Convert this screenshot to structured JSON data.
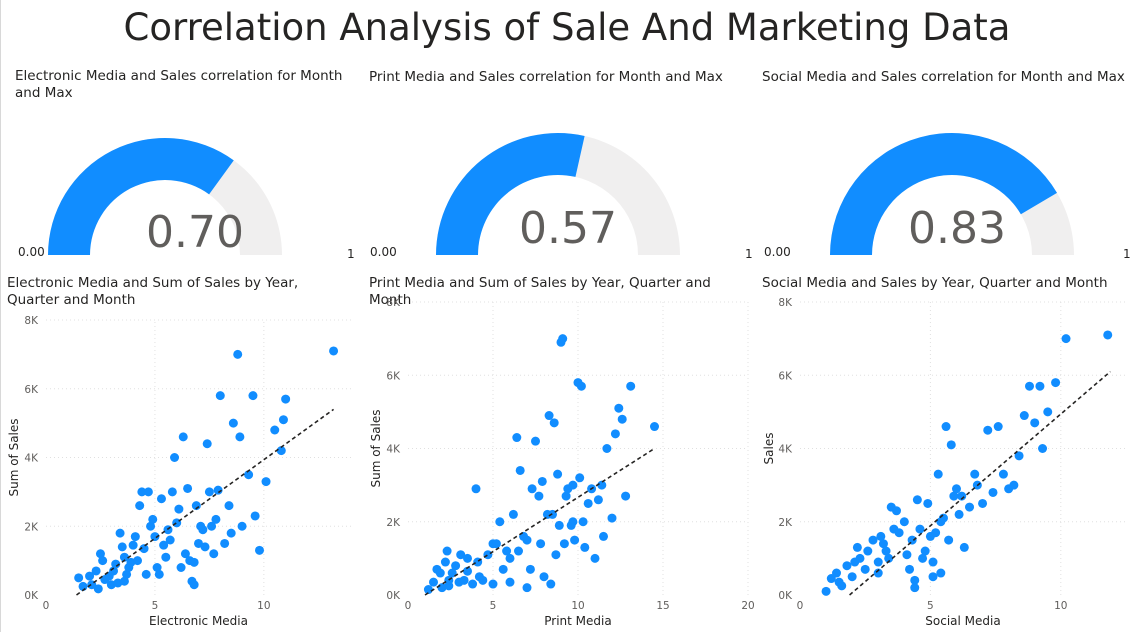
{
  "page": {
    "title": "Correlation Analysis of Sale And Marketing Data"
  },
  "colors": {
    "accent": "#118DFF",
    "gauge_track": "#F0EFEF",
    "trend": "#252423",
    "grid": "#E0E0E0",
    "text": "#252423",
    "muted": "#605E5C"
  },
  "gauges": [
    {
      "title": "Electronic Media and Sales correlation for Month and Max",
      "value": 0.7,
      "value_label": "0.70",
      "min_label": "0.00",
      "max_label": "1",
      "min": 0,
      "max": 1
    },
    {
      "title": "Print Media and Sales correlation for Month and Max",
      "value": 0.57,
      "value_label": "0.57",
      "min_label": "0.00",
      "max_label": "1",
      "min": 0,
      "max": 1
    },
    {
      "title": "Social Media and Sales correlation for Month and Max",
      "value": 0.83,
      "value_label": "0.83",
      "min_label": "0.00",
      "max_label": "1",
      "min": 0,
      "max": 1
    }
  ],
  "chart_data": [
    {
      "type": "scatter",
      "title": "Electronic Media and Sum of Sales by Year, Quarter and Month",
      "xlabel": "Electronic Media",
      "ylabel": "Sum of Sales",
      "xlim": [
        0,
        14
      ],
      "ylim": [
        0,
        8000
      ],
      "xticks": [
        0,
        5,
        10
      ],
      "xtick_labels": [
        "0",
        "5",
        "10"
      ],
      "yticks": [
        0,
        2000,
        4000,
        6000,
        8000
      ],
      "ytick_labels": [
        "0K",
        "2K",
        "4K",
        "6K",
        "8K"
      ],
      "trend": [
        [
          1.4,
          0
        ],
        [
          13.2,
          5400
        ]
      ],
      "points": [
        [
          1.5,
          500
        ],
        [
          1.7,
          250
        ],
        [
          2.0,
          550
        ],
        [
          2.1,
          300
        ],
        [
          2.3,
          700
        ],
        [
          2.4,
          180
        ],
        [
          2.5,
          1200
        ],
        [
          2.6,
          1000
        ],
        [
          2.7,
          450
        ],
        [
          2.9,
          550
        ],
        [
          3.0,
          300
        ],
        [
          3.1,
          700
        ],
        [
          3.2,
          900
        ],
        [
          3.3,
          350
        ],
        [
          3.4,
          1800
        ],
        [
          3.5,
          1400
        ],
        [
          3.6,
          1100
        ],
        [
          3.7,
          600
        ],
        [
          3.8,
          800
        ],
        [
          3.9,
          950
        ],
        [
          4.0,
          1450
        ],
        [
          4.1,
          1700
        ],
        [
          4.2,
          1000
        ],
        [
          4.3,
          2600
        ],
        [
          4.4,
          3000
        ],
        [
          4.5,
          1350
        ],
        [
          4.6,
          600
        ],
        [
          4.7,
          3000
        ],
        [
          4.8,
          2000
        ],
        [
          4.9,
          2200
        ],
        [
          5.0,
          1700
        ],
        [
          5.1,
          800
        ],
        [
          5.2,
          600
        ],
        [
          5.3,
          2800
        ],
        [
          5.4,
          1450
        ],
        [
          5.5,
          1100
        ],
        [
          5.6,
          1900
        ],
        [
          5.7,
          1600
        ],
        [
          5.8,
          3000
        ],
        [
          5.9,
          4000
        ],
        [
          6.0,
          2100
        ],
        [
          6.1,
          2500
        ],
        [
          6.2,
          800
        ],
        [
          6.3,
          4600
        ],
        [
          6.4,
          1200
        ],
        [
          6.5,
          3100
        ],
        [
          6.6,
          1000
        ],
        [
          6.7,
          400
        ],
        [
          6.8,
          300
        ],
        [
          6.9,
          2600
        ],
        [
          7.0,
          1500
        ],
        [
          7.1,
          2000
        ],
        [
          7.2,
          1900
        ],
        [
          7.3,
          1400
        ],
        [
          7.4,
          4400
        ],
        [
          7.5,
          3000
        ],
        [
          7.6,
          2000
        ],
        [
          7.7,
          1200
        ],
        [
          7.8,
          2200
        ],
        [
          7.9,
          3050
        ],
        [
          8.0,
          5800
        ],
        [
          8.2,
          1500
        ],
        [
          8.4,
          2600
        ],
        [
          8.5,
          1800
        ],
        [
          8.6,
          5000
        ],
        [
          8.8,
          7000
        ],
        [
          8.9,
          4600
        ],
        [
          9.0,
          2000
        ],
        [
          9.3,
          3500
        ],
        [
          9.5,
          5800
        ],
        [
          9.6,
          2300
        ],
        [
          9.8,
          1300
        ],
        [
          10.1,
          3300
        ],
        [
          10.5,
          4800
        ],
        [
          10.8,
          4200
        ],
        [
          10.9,
          5100
        ],
        [
          11.0,
          5700
        ],
        [
          13.2,
          7100
        ],
        [
          3.6,
          400
        ],
        [
          6.8,
          950
        ]
      ]
    },
    {
      "type": "scatter",
      "title": "Print Media and Sum of Sales by Year, Quarter and Month",
      "xlabel": "Print Media",
      "ylabel": "Sum of Sales",
      "xlim": [
        0,
        20
      ],
      "ylim": [
        0,
        8000
      ],
      "xticks": [
        0,
        5,
        10,
        15,
        20
      ],
      "xtick_labels": [
        "0",
        "5",
        "10",
        "15",
        "20"
      ],
      "yticks": [
        0,
        2000,
        4000,
        6000,
        8000
      ],
      "ytick_labels": [
        "0K",
        "2K",
        "4K",
        "6K",
        "8K"
      ],
      "trend": [
        [
          1.0,
          0
        ],
        [
          14.5,
          4000
        ]
      ],
      "points": [
        [
          1.2,
          150
        ],
        [
          1.5,
          350
        ],
        [
          1.7,
          700
        ],
        [
          1.9,
          600
        ],
        [
          2.0,
          200
        ],
        [
          2.2,
          900
        ],
        [
          2.3,
          1200
        ],
        [
          2.4,
          250
        ],
        [
          2.6,
          600
        ],
        [
          2.8,
          800
        ],
        [
          3.0,
          350
        ],
        [
          3.1,
          1100
        ],
        [
          3.3,
          400
        ],
        [
          3.5,
          650
        ],
        [
          3.8,
          300
        ],
        [
          4.0,
          2900
        ],
        [
          4.1,
          900
        ],
        [
          4.2,
          500
        ],
        [
          4.4,
          400
        ],
        [
          4.7,
          1100
        ],
        [
          5.0,
          1400
        ],
        [
          5.2,
          1400
        ],
        [
          5.4,
          2000
        ],
        [
          5.6,
          700
        ],
        [
          5.8,
          1200
        ],
        [
          6.0,
          350
        ],
        [
          6.2,
          2200
        ],
        [
          6.4,
          4300
        ],
        [
          6.5,
          1200
        ],
        [
          6.6,
          3400
        ],
        [
          6.8,
          1600
        ],
        [
          7.0,
          1500
        ],
        [
          7.2,
          700
        ],
        [
          7.3,
          2900
        ],
        [
          7.5,
          4200
        ],
        [
          7.7,
          2700
        ],
        [
          7.8,
          1400
        ],
        [
          7.9,
          3100
        ],
        [
          8.0,
          500
        ],
        [
          8.2,
          2200
        ],
        [
          8.3,
          4900
        ],
        [
          8.4,
          300
        ],
        [
          8.5,
          2200
        ],
        [
          8.6,
          4700
        ],
        [
          8.7,
          1100
        ],
        [
          8.8,
          3300
        ],
        [
          8.9,
          1900
        ],
        [
          9.0,
          6900
        ],
        [
          9.1,
          7000
        ],
        [
          9.2,
          1400
        ],
        [
          9.3,
          2700
        ],
        [
          9.4,
          2900
        ],
        [
          9.6,
          1900
        ],
        [
          9.7,
          3000
        ],
        [
          9.8,
          1500
        ],
        [
          10.0,
          5800
        ],
        [
          10.1,
          3200
        ],
        [
          10.2,
          5700
        ],
        [
          10.3,
          2000
        ],
        [
          10.4,
          1300
        ],
        [
          10.6,
          2500
        ],
        [
          10.8,
          2900
        ],
        [
          11.0,
          1000
        ],
        [
          11.2,
          2600
        ],
        [
          11.4,
          3000
        ],
        [
          11.5,
          1600
        ],
        [
          11.7,
          4000
        ],
        [
          12.0,
          2100
        ],
        [
          12.2,
          4400
        ],
        [
          12.4,
          5100
        ],
        [
          12.6,
          4800
        ],
        [
          12.8,
          2700
        ],
        [
          13.1,
          5700
        ],
        [
          14.5,
          4600
        ],
        [
          7.0,
          200
        ],
        [
          5.0,
          300
        ],
        [
          3.5,
          1000
        ],
        [
          2.4,
          400
        ],
        [
          6.0,
          1000
        ],
        [
          9.7,
          2000
        ]
      ]
    },
    {
      "type": "scatter",
      "title": "Social Media and Sales by Year, Quarter and Month",
      "xlabel": "Social Media",
      "ylabel": "Sales",
      "xlim": [
        0,
        12.5
      ],
      "ylim": [
        0,
        8000
      ],
      "xticks": [
        0,
        5,
        10
      ],
      "xtick_labels": [
        "0",
        "5",
        "10"
      ],
      "yticks": [
        0,
        2000,
        4000,
        6000,
        8000
      ],
      "ytick_labels": [
        "0K",
        "2K",
        "4K",
        "6K",
        "8K"
      ],
      "trend": [
        [
          1.9,
          0
        ],
        [
          11.9,
          6100
        ]
      ],
      "points": [
        [
          1.0,
          100
        ],
        [
          1.2,
          450
        ],
        [
          1.4,
          600
        ],
        [
          1.5,
          350
        ],
        [
          1.6,
          250
        ],
        [
          1.8,
          800
        ],
        [
          2.0,
          500
        ],
        [
          2.1,
          900
        ],
        [
          2.2,
          1300
        ],
        [
          2.3,
          1000
        ],
        [
          2.5,
          700
        ],
        [
          2.6,
          1200
        ],
        [
          2.8,
          1500
        ],
        [
          3.0,
          600
        ],
        [
          3.1,
          1600
        ],
        [
          3.2,
          1400
        ],
        [
          3.3,
          1200
        ],
        [
          3.4,
          1000
        ],
        [
          3.5,
          2400
        ],
        [
          3.6,
          1800
        ],
        [
          3.7,
          2300
        ],
        [
          3.8,
          1700
        ],
        [
          4.0,
          2000
        ],
        [
          4.1,
          1100
        ],
        [
          4.2,
          700
        ],
        [
          4.3,
          1500
        ],
        [
          4.4,
          400
        ],
        [
          4.5,
          2600
        ],
        [
          4.6,
          1800
        ],
        [
          4.7,
          1000
        ],
        [
          4.8,
          1200
        ],
        [
          4.9,
          2500
        ],
        [
          5.0,
          1600
        ],
        [
          5.1,
          500
        ],
        [
          5.2,
          1700
        ],
        [
          5.3,
          3300
        ],
        [
          5.4,
          2000
        ],
        [
          5.5,
          2100
        ],
        [
          5.6,
          4600
        ],
        [
          5.7,
          1500
        ],
        [
          5.8,
          4100
        ],
        [
          5.9,
          2700
        ],
        [
          6.0,
          2900
        ],
        [
          6.1,
          2200
        ],
        [
          6.2,
          2700
        ],
        [
          6.3,
          1300
        ],
        [
          6.5,
          2400
        ],
        [
          6.7,
          3300
        ],
        [
          6.8,
          3000
        ],
        [
          7.0,
          2500
        ],
        [
          7.2,
          4500
        ],
        [
          7.4,
          2800
        ],
        [
          7.6,
          4600
        ],
        [
          7.8,
          3300
        ],
        [
          8.0,
          2900
        ],
        [
          8.2,
          3000
        ],
        [
          8.4,
          3800
        ],
        [
          8.6,
          4900
        ],
        [
          8.8,
          5700
        ],
        [
          9.0,
          4700
        ],
        [
          9.2,
          5700
        ],
        [
          9.3,
          4000
        ],
        [
          9.5,
          5000
        ],
        [
          9.8,
          5800
        ],
        [
          10.2,
          7000
        ],
        [
          11.8,
          7100
        ],
        [
          5.1,
          900
        ],
        [
          4.4,
          200
        ],
        [
          5.4,
          600
        ],
        [
          3.0,
          900
        ]
      ]
    }
  ]
}
